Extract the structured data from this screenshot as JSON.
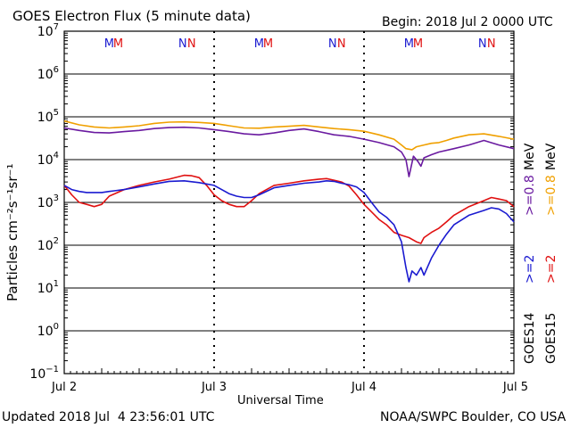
{
  "chart_data": {
    "type": "line",
    "title": "GOES Electron Flux (5 minute data)",
    "begin_label": "Begin: 2018 Jul 2 0000 UTC",
    "xlabel": "Universal Time",
    "ylabel": "Particles cm⁻²s⁻¹sr⁻¹",
    "x_ticks": [
      "Jul 2",
      "Jul 3",
      "Jul 4",
      "Jul 5"
    ],
    "x_unit": "days since Jul 2 0000 UTC",
    "xlim": [
      0,
      3
    ],
    "y_scale": "log",
    "ylim": [
      0.1,
      10000000
    ],
    "y_ticks": [
      {
        "base": "10",
        "exp": "7"
      },
      {
        "base": "10",
        "exp": "6"
      },
      {
        "base": "10",
        "exp": "5"
      },
      {
        "base": "10",
        "exp": "4"
      },
      {
        "base": "10",
        "exp": "3"
      },
      {
        "base": "10",
        "exp": "2"
      },
      {
        "base": "10",
        "exp": "1"
      },
      {
        "base": "10",
        "exp": "0"
      },
      {
        "base": "10",
        "exp": "−1"
      }
    ],
    "threshold": 1000,
    "top_markers": [
      "M",
      "M",
      "N",
      "N",
      "M",
      "M",
      "N",
      "N",
      "M",
      "M",
      "N",
      "N"
    ],
    "marker_colors": [
      "#1a1ad0",
      "#e01010",
      "#1a1ad0",
      "#e01010",
      "#1a1ad0",
      "#e01010",
      "#1a1ad0",
      "#e01010",
      "#1a1ad0",
      "#e01010",
      "#1a1ad0",
      "#e01010"
    ],
    "marker_x": [
      0.3,
      0.36,
      0.79,
      0.85,
      1.3,
      1.36,
      1.79,
      1.85,
      2.3,
      2.36,
      2.79,
      2.85
    ],
    "legend": {
      "groups": [
        {
          "name": "GOES15",
          "entries": [
            {
              "text": ">=2",
              "color": "#e01010"
            },
            {
              "text": ">=0.8",
              "color": "#f0a000"
            },
            {
              "text": "MeV",
              "color": "#000000"
            }
          ]
        },
        {
          "name": "GOES14",
          "entries": [
            {
              "text": ">=2",
              "color": "#1a1ad0"
            },
            {
              "text": ">=0.8",
              "color": "#6a1aa0"
            },
            {
              "text": "MeV",
              "color": "#000000"
            }
          ]
        }
      ]
    },
    "series": [
      {
        "name": "GOES15 >=0.8 MeV",
        "color": "#f0a000",
        "x": [
          0,
          0.1,
          0.2,
          0.3,
          0.4,
          0.5,
          0.6,
          0.7,
          0.8,
          0.9,
          1.0,
          1.1,
          1.2,
          1.3,
          1.4,
          1.5,
          1.6,
          1.7,
          1.8,
          1.9,
          2.0,
          2.1,
          2.2,
          2.25,
          2.28,
          2.32,
          2.35,
          2.4,
          2.45,
          2.5,
          2.55,
          2.6,
          2.7,
          2.8,
          2.9,
          3.0
        ],
        "y": [
          80000,
          65000,
          58000,
          55000,
          58000,
          62000,
          70000,
          75000,
          76000,
          74000,
          70000,
          62000,
          55000,
          54000,
          58000,
          60000,
          63000,
          58000,
          53000,
          50000,
          46000,
          38000,
          30000,
          22000,
          18000,
          17000,
          20000,
          22000,
          24000,
          25000,
          28000,
          32000,
          38000,
          40000,
          35000,
          30000
        ]
      },
      {
        "name": "GOES14 >=0.8 MeV",
        "color": "#6a1aa0",
        "x": [
          0,
          0.1,
          0.2,
          0.3,
          0.4,
          0.5,
          0.6,
          0.7,
          0.8,
          0.9,
          1.0,
          1.1,
          1.2,
          1.3,
          1.4,
          1.5,
          1.6,
          1.7,
          1.8,
          1.9,
          2.0,
          2.1,
          2.2,
          2.25,
          2.28,
          2.3,
          2.33,
          2.36,
          2.38,
          2.4,
          2.45,
          2.5,
          2.6,
          2.7,
          2.8,
          2.9,
          3.0
        ],
        "y": [
          55000,
          48000,
          43000,
          42000,
          45000,
          48000,
          53000,
          56000,
          57000,
          55000,
          50000,
          45000,
          40000,
          38000,
          42000,
          48000,
          52000,
          45000,
          38000,
          35000,
          30000,
          25000,
          20000,
          15000,
          10000,
          4000,
          12000,
          9000,
          7000,
          11000,
          13000,
          15000,
          18000,
          22000,
          28000,
          22000,
          18000
        ]
      },
      {
        "name": "GOES15 >=2 MeV",
        "color": "#e01010",
        "x": [
          0,
          0.05,
          0.1,
          0.15,
          0.2,
          0.25,
          0.3,
          0.4,
          0.5,
          0.6,
          0.7,
          0.8,
          0.85,
          0.9,
          0.95,
          1.0,
          1.05,
          1.1,
          1.15,
          1.2,
          1.25,
          1.3,
          1.4,
          1.5,
          1.6,
          1.7,
          1.75,
          1.8,
          1.85,
          1.9,
          1.95,
          2.0,
          2.05,
          2.1,
          2.15,
          2.2,
          2.25,
          2.3,
          2.35,
          2.38,
          2.4,
          2.45,
          2.5,
          2.55,
          2.6,
          2.7,
          2.8,
          2.85,
          2.9,
          2.95,
          3.0
        ],
        "y": [
          2500,
          1500,
          1000,
          900,
          800,
          900,
          1400,
          2000,
          2500,
          3000,
          3500,
          4300,
          4200,
          3800,
          2500,
          1500,
          1100,
          900,
          800,
          800,
          1100,
          1600,
          2500,
          2800,
          3200,
          3500,
          3600,
          3300,
          3000,
          2400,
          1500,
          900,
          600,
          400,
          300,
          200,
          170,
          150,
          120,
          110,
          150,
          200,
          250,
          350,
          500,
          800,
          1100,
          1300,
          1200,
          1100,
          800
        ]
      },
      {
        "name": "GOES14 >=2 MeV",
        "color": "#1a1ad0",
        "x": [
          0,
          0.05,
          0.1,
          0.15,
          0.2,
          0.25,
          0.3,
          0.4,
          0.5,
          0.6,
          0.7,
          0.8,
          0.9,
          1.0,
          1.05,
          1.1,
          1.15,
          1.2,
          1.25,
          1.3,
          1.4,
          1.5,
          1.6,
          1.7,
          1.75,
          1.8,
          1.85,
          1.9,
          1.95,
          2.0,
          2.05,
          2.1,
          2.15,
          2.2,
          2.25,
          2.28,
          2.3,
          2.32,
          2.35,
          2.38,
          2.4,
          2.45,
          2.5,
          2.55,
          2.6,
          2.7,
          2.8,
          2.85,
          2.9,
          2.95,
          3.0
        ],
        "y": [
          2500,
          2000,
          1800,
          1700,
          1700,
          1700,
          1800,
          2000,
          2300,
          2700,
          3100,
          3200,
          2900,
          2500,
          2000,
          1600,
          1400,
          1300,
          1300,
          1500,
          2200,
          2500,
          2800,
          3000,
          3200,
          3100,
          2800,
          2600,
          2300,
          1700,
          1000,
          600,
          450,
          300,
          120,
          30,
          14,
          25,
          20,
          30,
          20,
          50,
          100,
          180,
          300,
          500,
          650,
          750,
          700,
          550,
          350
        ]
      }
    ]
  },
  "footer": {
    "updated": "Updated 2018 Jul  4 23:56:01 UTC",
    "credit": "NOAA/SWPC Boulder, CO USA"
  }
}
